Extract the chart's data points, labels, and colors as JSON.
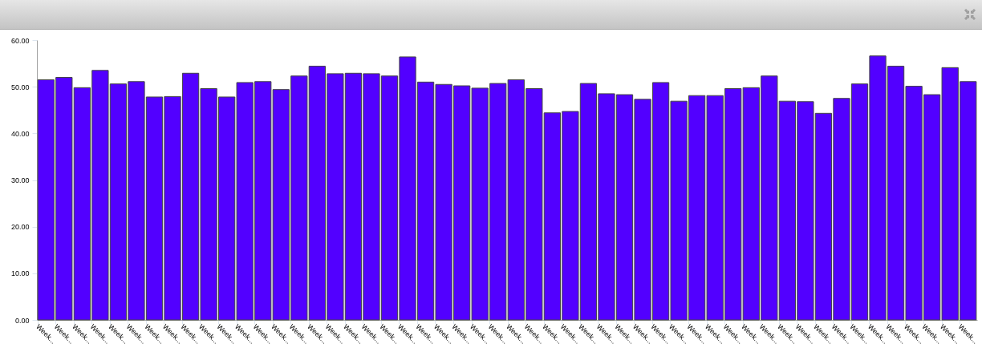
{
  "chart_data": {
    "type": "bar",
    "categories": [
      "Week...",
      "Week...",
      "Week...",
      "Week...",
      "Week...",
      "Week...",
      "Week...",
      "Week...",
      "Week...",
      "Week...",
      "Week...",
      "Week...",
      "Week...",
      "Week...",
      "Week...",
      "Week...",
      "Week...",
      "Week...",
      "Week...",
      "Week...",
      "Week...",
      "Week...",
      "Week...",
      "Week...",
      "Week...",
      "Week...",
      "Week...",
      "Week...",
      "Week...",
      "Week...",
      "Week...",
      "Week...",
      "Week...",
      "Week...",
      "Week...",
      "Week...",
      "Week...",
      "Week...",
      "Week...",
      "Week...",
      "Week...",
      "Week...",
      "Week...",
      "Week...",
      "Week...",
      "Week...",
      "Week...",
      "Week...",
      "Week...",
      "Week...",
      "Week...",
      "Week..."
    ],
    "values": [
      51.5,
      52.0,
      49.8,
      53.5,
      50.6,
      51.1,
      47.8,
      47.9,
      52.9,
      49.6,
      47.8,
      50.9,
      51.1,
      49.4,
      52.3,
      54.4,
      52.8,
      52.9,
      52.8,
      52.3,
      56.4,
      51.0,
      50.5,
      50.2,
      49.7,
      50.7,
      51.5,
      49.6,
      44.4,
      44.7,
      50.7,
      48.5,
      48.3,
      47.3,
      50.9,
      46.9,
      48.1,
      48.1,
      49.6,
      49.8,
      52.3,
      46.9,
      46.8,
      44.3,
      47.5,
      50.6,
      56.6,
      54.4,
      50.1,
      48.3,
      54.1,
      51.1
    ],
    "color": "#5200ff",
    "ylim": [
      0,
      60
    ],
    "yticks": [
      {
        "value": 0,
        "label": "0.00"
      },
      {
        "value": 10,
        "label": "10.00"
      },
      {
        "value": 20,
        "label": "20.00"
      },
      {
        "value": 30,
        "label": "30.00"
      },
      {
        "value": 40,
        "label": "40.00"
      },
      {
        "value": 50,
        "label": "50.00"
      },
      {
        "value": 60,
        "label": "60.00"
      }
    ],
    "grid": false
  }
}
